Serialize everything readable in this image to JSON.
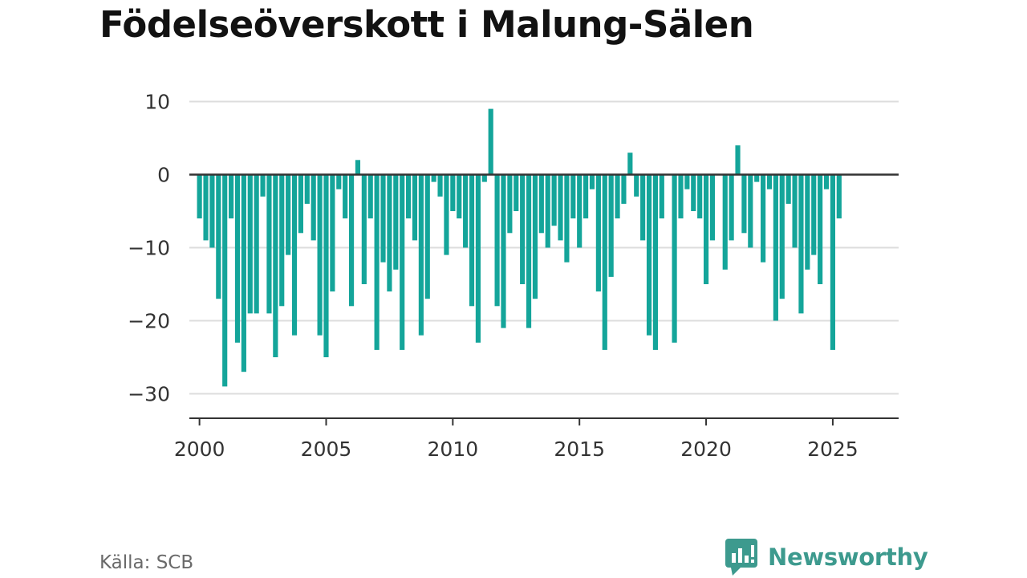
{
  "header": {
    "title": "Födelseöverskott i Malung-Sälen"
  },
  "footer": {
    "source": "Källa: SCB",
    "brand": "Newsworthy"
  },
  "colors": {
    "bar": "#14a59a",
    "zero_line": "#333333",
    "grid": "#dddddd",
    "brand": "#3d9a8e"
  },
  "icons": {
    "brand_logo": "newsworthy-logo-icon"
  },
  "chart_data": {
    "type": "bar",
    "title": "Födelseöverskott i Malung-Sälen",
    "xlabel": "",
    "ylabel": "",
    "ylim": [
      -33,
      12
    ],
    "xlim": [
      1999.6,
      2027.6
    ],
    "grid": true,
    "y_ticks": [
      10,
      0,
      -10,
      -20,
      -30
    ],
    "y_tick_labels": [
      "10",
      "0",
      "−10",
      "−20",
      "−30"
    ],
    "x_ticks": [
      2000,
      2005,
      2010,
      2015,
      2020,
      2025
    ],
    "x_tick_labels": [
      "2000",
      "2005",
      "2010",
      "2015",
      "2020",
      "2025"
    ],
    "frequency": "quarterly",
    "start": "2000 Q1",
    "series": [
      {
        "values": [
          -6,
          -9,
          -10,
          -17,
          -29,
          -6,
          -23,
          -27,
          -19,
          -19,
          -3,
          -19,
          -25,
          -18,
          -11,
          -22,
          -8,
          -4,
          -9,
          -22,
          -25,
          -16,
          -2,
          -6,
          -18,
          2,
          -15,
          -6,
          -24,
          -12,
          -16,
          -13,
          -24,
          -6,
          -9,
          -22,
          -17,
          -1,
          -3,
          -11,
          -5,
          -6,
          -10,
          -18,
          -23,
          -1,
          9,
          -18,
          -21,
          -8,
          -5,
          -15,
          -21,
          -17,
          -8,
          -10,
          -7,
          -9,
          -12,
          -6,
          -10,
          -6,
          -2,
          -16,
          -24,
          -14,
          -6,
          -4,
          3,
          -3,
          -9,
          -22,
          -24,
          -6,
          0,
          -23,
          -6,
          -2,
          -5,
          -6,
          -15,
          -9,
          0,
          -13,
          -9,
          4,
          -8,
          -10,
          -1,
          -12,
          -2,
          -20,
          -17,
          -4,
          -10,
          -19,
          -13,
          -11,
          -15,
          -2,
          -24,
          -6
        ]
      }
    ]
  }
}
